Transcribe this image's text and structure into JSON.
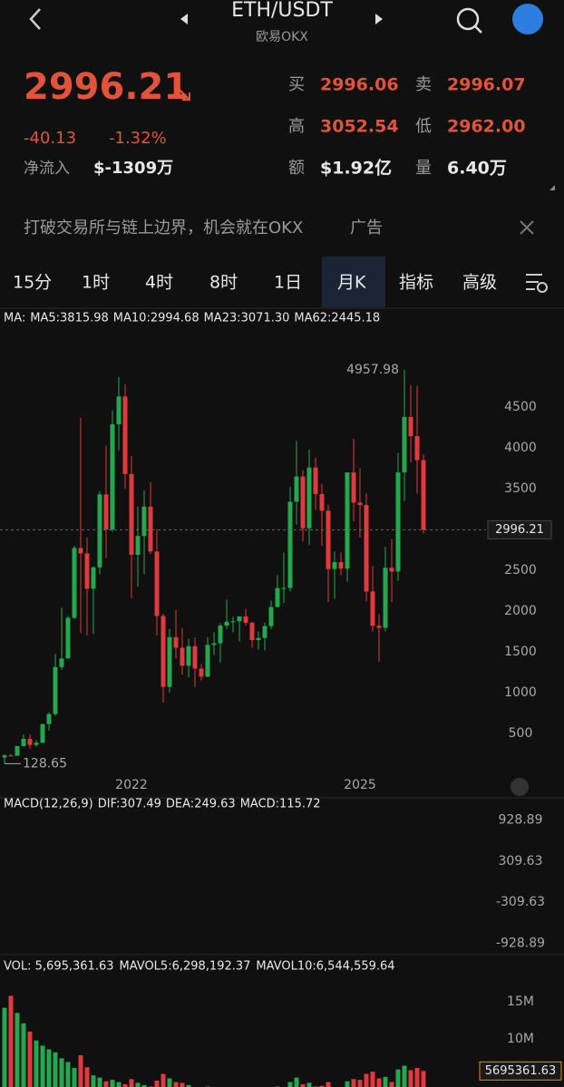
{
  "header": {
    "pair": "ETH/USDT",
    "exchange": "欧易OKX",
    "price": "2996.21",
    "change": "-40.13",
    "change_pct": "-1.32%",
    "net_inflow_label": "净流入",
    "net_inflow": "$-1309万",
    "stats": [
      [
        "买",
        "2996.06"
      ],
      [
        "卖",
        "2996.07"
      ],
      [
        "高",
        "3052.54"
      ],
      [
        "低",
        "2962.00"
      ],
      [
        "额",
        "$1.92亿"
      ],
      [
        "量",
        "6.40万"
      ]
    ]
  },
  "banner": {
    "text": "打破交易所与链上边界，机会就在OKX",
    "tag": "广告"
  },
  "tabs": [
    "15分",
    "1时",
    "4时",
    "8时",
    "1日",
    "月K",
    "指标",
    "高级"
  ],
  "chart_data": {
    "type": "candlestick",
    "legend": [
      "MA:",
      "MA5:3815.98",
      "MA10:2994.68",
      "MA23:3071.30",
      "MA62:2445.18"
    ],
    "legend_colors": [
      "#d8d8d8",
      "#4fd1c5",
      "#f5a623",
      "#e040c8",
      "#3d9de0"
    ],
    "up_color": "#25a750",
    "down_color": "#e0393e",
    "categories": [
      null,
      null,
      null,
      null,
      null,
      null,
      null,
      null,
      null,
      null,
      null,
      null,
      null,
      null,
      null,
      null,
      null,
      null,
      null,
      null,
      "2022",
      null,
      null,
      null,
      null,
      null,
      null,
      null,
      null,
      null,
      null,
      null,
      null,
      null,
      null,
      null,
      null,
      null,
      null,
      null,
      null,
      null,
      null,
      null,
      null,
      null,
      null,
      null,
      null,
      null,
      null,
      null,
      null,
      null,
      null,
      null,
      "2025",
      null,
      null,
      null,
      null,
      null,
      null,
      null,
      null,
      null,
      null
    ],
    "ohlc": [
      [
        206,
        245,
        128.65,
        231
      ],
      [
        231,
        250,
        216,
        226
      ],
      [
        226,
        350,
        225,
        345
      ],
      [
        345,
        490,
        340,
        434
      ],
      [
        434,
        488,
        310,
        360
      ],
      [
        360,
        420,
        335,
        386
      ],
      [
        386,
        620,
        380,
        615
      ],
      [
        615,
        760,
        535,
        737
      ],
      [
        737,
        1475,
        715,
        1314
      ],
      [
        1314,
        2040,
        1280,
        1419
      ],
      [
        1419,
        1945,
        1440,
        1918
      ],
      [
        1918,
        2800,
        1900,
        2773
      ],
      [
        2773,
        4370,
        1730,
        2706
      ],
      [
        2706,
        2900,
        1700,
        2275
      ],
      [
        2275,
        2550,
        1720,
        2536
      ],
      [
        2536,
        3470,
        2450,
        3430
      ],
      [
        3430,
        4030,
        2650,
        3000
      ],
      [
        3000,
        4460,
        2970,
        4290
      ],
      [
        4290,
        4870,
        3970,
        4630
      ],
      [
        4630,
        4780,
        3500,
        3680
      ],
      [
        3680,
        3900,
        2160,
        2690
      ],
      [
        2690,
        3280,
        2300,
        2920
      ],
      [
        2920,
        3480,
        2450,
        3280
      ],
      [
        3280,
        3580,
        2700,
        2730
      ],
      [
        2730,
        3000,
        1700,
        1940
      ],
      [
        1940,
        1970,
        880,
        1070
      ],
      [
        1070,
        1780,
        1000,
        1680
      ],
      [
        1680,
        2020,
        1420,
        1550
      ],
      [
        1550,
        1790,
        1220,
        1330
      ],
      [
        1330,
        1660,
        1190,
        1570
      ],
      [
        1570,
        1680,
        1070,
        1295
      ],
      [
        1295,
        1350,
        1150,
        1196
      ],
      [
        1196,
        1680,
        1190,
        1585
      ],
      [
        1585,
        1740,
        1460,
        1605
      ],
      [
        1605,
        1850,
        1370,
        1822
      ],
      [
        1822,
        2140,
        1780,
        1870
      ],
      [
        1870,
        1930,
        1740,
        1875
      ],
      [
        1875,
        1930,
        1630,
        1935
      ],
      [
        1935,
        2030,
        1820,
        1857
      ],
      [
        1857,
        1870,
        1550,
        1645
      ],
      [
        1645,
        1750,
        1530,
        1671
      ],
      [
        1671,
        1860,
        1520,
        1815
      ],
      [
        1815,
        2130,
        1780,
        2050
      ],
      [
        2050,
        2440,
        2040,
        2282
      ],
      [
        2282,
        2720,
        2100,
        2283
      ],
      [
        2283,
        3520,
        2240,
        3340
      ],
      [
        3340,
        4090,
        3060,
        3650
      ],
      [
        3650,
        3730,
        2850,
        3015
      ],
      [
        3015,
        3980,
        2810,
        3760
      ],
      [
        3760,
        3880,
        3240,
        3435
      ],
      [
        3435,
        3560,
        2800,
        3230
      ],
      [
        3230,
        3300,
        2110,
        2515
      ],
      [
        2515,
        2730,
        2150,
        2600
      ],
      [
        2600,
        2720,
        2440,
        2520
      ],
      [
        2520,
        3700,
        2360,
        3700
      ],
      [
        3700,
        4110,
        3100,
        3330
      ],
      [
        3330,
        3750,
        2900,
        3300
      ],
      [
        3300,
        3440,
        2120,
        2240
      ],
      [
        2240,
        2550,
        1750,
        1820
      ],
      [
        1820,
        1960,
        1380,
        1795
      ],
      [
        1795,
        2790,
        1750,
        2530
      ],
      [
        2530,
        2880,
        2110,
        2485
      ],
      [
        2485,
        3940,
        2370,
        3700
      ],
      [
        3700,
        4957.98,
        3350,
        4380
      ],
      [
        4380,
        4770,
        3820,
        4145
      ],
      [
        4145,
        4760,
        3440,
        3850
      ],
      [
        3850,
        3920,
        2950,
        2996.21
      ]
    ],
    "ylim": [
      0,
      5490
    ],
    "yticks": [
      500,
      1000,
      1500,
      2000,
      2500,
      3000,
      3500,
      4000,
      4500
    ],
    "macd": {
      "legend": [
        "MACD(12,26,9)",
        "DIF:307.49",
        "DEA:249.63",
        "MACD:115.72"
      ],
      "legend_colors": [
        "#d8d8d8",
        "#d8d8d8",
        "#f0d040",
        "#e040e0"
      ],
      "ylim": [
        -1060,
        1060
      ],
      "yticks": [
        928.89,
        309.63,
        -309.63,
        -928.89
      ]
    },
    "volume_legend": [
      "VOL: 5,695,361.63",
      "MAVOL5:6,298,192.37",
      "MAVOL10:6,544,559.64"
    ],
    "volume_legend_colors": [
      "#d8d8d8",
      "#f5a623",
      "#e0a0d0"
    ],
    "volume": [
      14200000,
      15800000,
      13500000,
      12100000,
      11000000,
      9800000,
      9100000,
      8600000,
      8200000,
      7400000,
      6900000,
      6100000,
      7800000,
      6200000,
      5100000,
      4800000,
      4300000,
      4500000,
      4200000,
      3900000,
      4600000,
      4100000,
      3800000,
      3600000,
      4400000,
      5300000,
      4700000,
      4200000,
      4100000,
      3800000,
      3500000,
      3200000,
      3600000,
      3300000,
      3100000,
      2800000,
      2500000,
      2900000,
      2600000,
      2700000,
      2400000,
      2800000,
      3400000,
      3600000,
      3300000,
      4200000,
      4800000,
      3900000,
      4100000,
      3600000,
      3700000,
      4200000,
      3500000,
      3200000,
      4300000,
      4600000,
      4500000,
      5300000,
      5600000,
      4700000,
      4900000,
      4200000,
      5900000,
      6400000,
      5800000,
      6100000,
      5695361.63
    ],
    "volume_ylim": [
      0,
      18660000
    ],
    "volume_yticks": [
      {
        "value": 15000000,
        "label": "15M"
      },
      {
        "value": 10000000,
        "label": "10M"
      }
    ]
  }
}
